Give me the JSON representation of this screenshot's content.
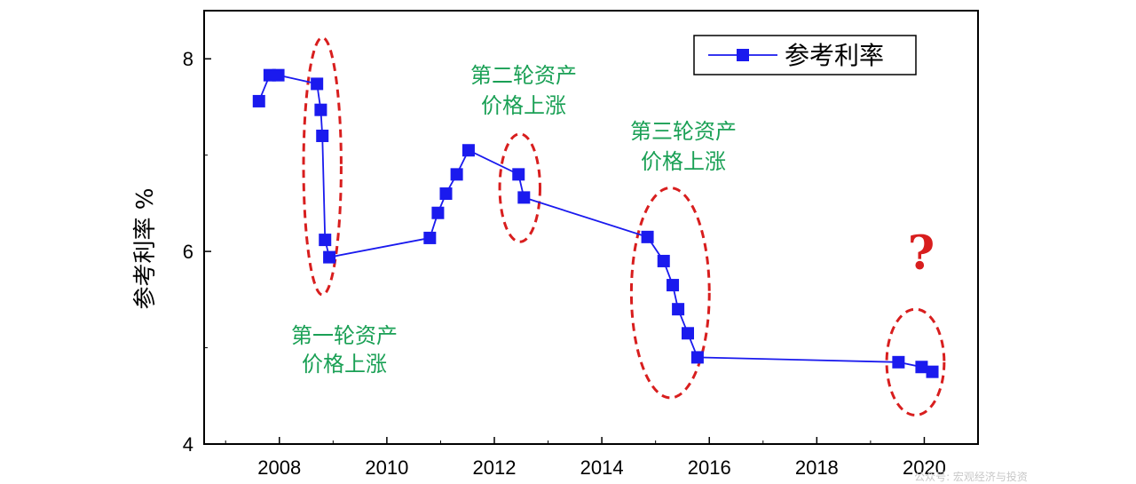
{
  "chart_data": {
    "type": "line",
    "title": "",
    "xlabel": "",
    "ylabel": "参考利率 %",
    "xlim": [
      2006.6,
      2021.0
    ],
    "ylim": [
      4,
      8.5
    ],
    "x_ticks": [
      2008,
      2010,
      2012,
      2014,
      2016,
      2018,
      2020
    ],
    "y_ticks": [
      4,
      6,
      8
    ],
    "legend": {
      "position": "top-right"
    },
    "grid": false,
    "series": [
      {
        "name": "参考利率",
        "color": "#1a1aee",
        "marker": "square",
        "x": [
          2007.62,
          2007.82,
          2007.98,
          2008.7,
          2008.77,
          2008.8,
          2008.85,
          2008.93,
          2010.8,
          2010.95,
          2011.1,
          2011.3,
          2011.52,
          2012.45,
          2012.55,
          2014.85,
          2015.15,
          2015.32,
          2015.42,
          2015.6,
          2015.78,
          2019.52,
          2019.95,
          2020.15
        ],
        "values": [
          7.56,
          7.83,
          7.83,
          7.74,
          7.47,
          7.2,
          6.12,
          5.94,
          6.14,
          6.4,
          6.6,
          6.8,
          7.05,
          6.8,
          6.56,
          6.15,
          5.9,
          5.65,
          5.4,
          5.15,
          4.9,
          4.85,
          4.8,
          4.75
        ]
      }
    ],
    "annotations": [
      {
        "id": "round1",
        "lines": [
          "第一轮资产",
          "价格上涨"
        ]
      },
      {
        "id": "round2",
        "lines": [
          "第二轮资产",
          "价格上涨"
        ]
      },
      {
        "id": "round3",
        "lines": [
          "第三轮资产",
          "价格上涨"
        ]
      },
      {
        "id": "future",
        "text": "?"
      }
    ],
    "highlight_ellipses": [
      {
        "x_range": [
          2008.45,
          2009.15
        ],
        "y_range": [
          5.55,
          8.22
        ],
        "color": "#d81e1e"
      },
      {
        "x_range": [
          2012.1,
          2012.85
        ],
        "y_range": [
          6.1,
          7.22
        ],
        "color": "#d81e1e"
      },
      {
        "x_range": [
          2014.55,
          2016.0
        ],
        "y_range": [
          4.48,
          6.66
        ],
        "color": "#d81e1e"
      },
      {
        "x_range": [
          2019.3,
          2020.37
        ],
        "y_range": [
          4.3,
          5.4
        ],
        "color": "#d81e1e"
      }
    ]
  },
  "watermark": "公众号: 宏观经济与投资"
}
